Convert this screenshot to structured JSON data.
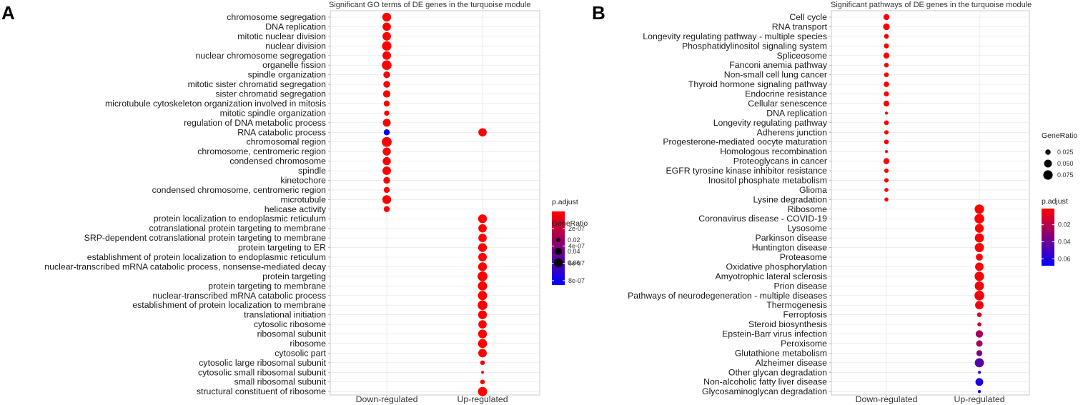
{
  "colors": {
    "low_padj": "#ff0000",
    "high_padj": "#0000ff",
    "grid": "#e3e3e3",
    "panel_border": "#bdbdbd"
  },
  "chart_data": [
    {
      "type": "scatter",
      "panel_label": "A",
      "title": "Significant GO terms of DE genes in the turquoise module",
      "xlabel": "",
      "ylabel": "",
      "categories": [
        "Down-regulated",
        "Up-regulated"
      ],
      "terms": [
        "chromosome segregation",
        "DNA replication",
        "mitotic nuclear division",
        "nuclear division",
        "nuclear chromosome segregation",
        "organelle fission",
        "spindle organization",
        "mitotic sister chromatid segregation",
        "sister chromatid segregation",
        "microtubule cytoskeleton organization involved in mitosis",
        "mitotic spindle organization",
        "regulation of DNA metabolic process",
        "RNA catabolic process",
        "chromosomal region",
        "chromosome, centromeric region",
        "condensed chromosome",
        "spindle",
        "kinetochore",
        "condensed chromosome, centromeric region",
        "microtubule",
        "helicase activity",
        "protein localization to endoplasmic reticulum",
        "cotranslational protein targeting to membrane",
        "SRP-dependent cotranslational protein targeting to membrane",
        "protein targeting to ER",
        "establishment of protein localization to endoplasmic reticulum",
        "nuclear-transcribed mRNA catabolic process, nonsense-mediated decay",
        "protein targeting",
        "protein targeting to membrane",
        "nuclear-transcribed mRNA catabolic process",
        "establishment of protein localization to membrane",
        "translational initiation",
        "cytosolic ribosome",
        "ribosomal subunit",
        "ribosome",
        "cytosolic part",
        "cytosolic large ribosomal subunit",
        "cytosolic small ribosomal subunit",
        "small ribosomal subunit",
        "structural constituent of ribosome"
      ],
      "points": [
        {
          "term": "chromosome segregation",
          "group": "Down-regulated",
          "gene_ratio": 0.055,
          "p_adjust": 1e-09
        },
        {
          "term": "DNA replication",
          "group": "Down-regulated",
          "gene_ratio": 0.05,
          "p_adjust": 1e-09
        },
        {
          "term": "mitotic nuclear division",
          "group": "Down-regulated",
          "gene_ratio": 0.052,
          "p_adjust": 1e-09
        },
        {
          "term": "nuclear division",
          "group": "Down-regulated",
          "gene_ratio": 0.062,
          "p_adjust": 1e-09
        },
        {
          "term": "nuclear chromosome segregation",
          "group": "Down-regulated",
          "gene_ratio": 0.052,
          "p_adjust": 1e-09
        },
        {
          "term": "organelle fission",
          "group": "Down-regulated",
          "gene_ratio": 0.065,
          "p_adjust": 1e-09
        },
        {
          "term": "spindle organization",
          "group": "Down-regulated",
          "gene_ratio": 0.035,
          "p_adjust": 1e-09
        },
        {
          "term": "mitotic sister chromatid segregation",
          "group": "Down-regulated",
          "gene_ratio": 0.035,
          "p_adjust": 1e-09
        },
        {
          "term": "sister chromatid segregation",
          "group": "Down-regulated",
          "gene_ratio": 0.04,
          "p_adjust": 1e-09
        },
        {
          "term": "microtubule cytoskeleton organization involved in mitosis",
          "group": "Down-regulated",
          "gene_ratio": 0.03,
          "p_adjust": 1e-09
        },
        {
          "term": "mitotic spindle organization",
          "group": "Down-regulated",
          "gene_ratio": 0.025,
          "p_adjust": 1e-09
        },
        {
          "term": "regulation of DNA metabolic process",
          "group": "Down-regulated",
          "gene_ratio": 0.045,
          "p_adjust": 1e-09
        },
        {
          "term": "RNA catabolic process",
          "group": "Down-regulated",
          "gene_ratio": 0.03,
          "p_adjust": 8.5e-07
        },
        {
          "term": "RNA catabolic process",
          "group": "Up-regulated",
          "gene_ratio": 0.05,
          "p_adjust": 1e-09
        },
        {
          "term": "chromosomal region",
          "group": "Down-regulated",
          "gene_ratio": 0.068,
          "p_adjust": 1e-09
        },
        {
          "term": "chromosome, centromeric region",
          "group": "Down-regulated",
          "gene_ratio": 0.048,
          "p_adjust": 1e-09
        },
        {
          "term": "condensed chromosome",
          "group": "Down-regulated",
          "gene_ratio": 0.048,
          "p_adjust": 1e-09
        },
        {
          "term": "spindle",
          "group": "Down-regulated",
          "gene_ratio": 0.052,
          "p_adjust": 1e-09
        },
        {
          "term": "kinetochore",
          "group": "Down-regulated",
          "gene_ratio": 0.035,
          "p_adjust": 1e-09
        },
        {
          "term": "condensed chromosome, centromeric region",
          "group": "Down-regulated",
          "gene_ratio": 0.03,
          "p_adjust": 1e-09
        },
        {
          "term": "microtubule",
          "group": "Down-regulated",
          "gene_ratio": 0.055,
          "p_adjust": 1e-09
        },
        {
          "term": "helicase activity",
          "group": "Down-regulated",
          "gene_ratio": 0.03,
          "p_adjust": 1e-09
        },
        {
          "term": "protein localization to endoplasmic reticulum",
          "group": "Up-regulated",
          "gene_ratio": 0.055,
          "p_adjust": 1e-09
        },
        {
          "term": "cotranslational protein targeting to membrane",
          "group": "Up-regulated",
          "gene_ratio": 0.05,
          "p_adjust": 1e-09
        },
        {
          "term": "SRP-dependent cotranslational protein targeting to membrane",
          "group": "Up-regulated",
          "gene_ratio": 0.05,
          "p_adjust": 1e-09
        },
        {
          "term": "protein targeting to ER",
          "group": "Up-regulated",
          "gene_ratio": 0.055,
          "p_adjust": 1e-09
        },
        {
          "term": "establishment of protein localization to endoplasmic reticulum",
          "group": "Up-regulated",
          "gene_ratio": 0.052,
          "p_adjust": 1e-09
        },
        {
          "term": "nuclear-transcribed mRNA catabolic process, nonsense-mediated decay",
          "group": "Up-regulated",
          "gene_ratio": 0.055,
          "p_adjust": 1e-09
        },
        {
          "term": "protein targeting",
          "group": "Up-regulated",
          "gene_ratio": 0.068,
          "p_adjust": 1e-09
        },
        {
          "term": "protein targeting to membrane",
          "group": "Up-regulated",
          "gene_ratio": 0.06,
          "p_adjust": 1e-09
        },
        {
          "term": "nuclear-transcribed mRNA catabolic process",
          "group": "Up-regulated",
          "gene_ratio": 0.06,
          "p_adjust": 1e-09
        },
        {
          "term": "establishment of protein localization to membrane",
          "group": "Up-regulated",
          "gene_ratio": 0.065,
          "p_adjust": 1e-09
        },
        {
          "term": "translational initiation",
          "group": "Up-regulated",
          "gene_ratio": 0.055,
          "p_adjust": 1e-09
        },
        {
          "term": "cytosolic ribosome",
          "group": "Up-regulated",
          "gene_ratio": 0.05,
          "p_adjust": 1e-09
        },
        {
          "term": "ribosomal subunit",
          "group": "Up-regulated",
          "gene_ratio": 0.055,
          "p_adjust": 1e-09
        },
        {
          "term": "ribosome",
          "group": "Up-regulated",
          "gene_ratio": 0.058,
          "p_adjust": 1e-09
        },
        {
          "term": "cytosolic part",
          "group": "Up-regulated",
          "gene_ratio": 0.052,
          "p_adjust": 1e-09
        },
        {
          "term": "cytosolic large ribosomal subunit",
          "group": "Up-regulated",
          "gene_ratio": 0.022,
          "p_adjust": 1e-09
        },
        {
          "term": "cytosolic small ribosomal subunit",
          "group": "Up-regulated",
          "gene_ratio": 0.016,
          "p_adjust": 1e-09
        },
        {
          "term": "small ribosomal subunit",
          "group": "Up-regulated",
          "gene_ratio": 0.022,
          "p_adjust": 1e-09
        },
        {
          "term": "structural constituent of ribosome",
          "group": "Up-regulated",
          "gene_ratio": 0.06,
          "p_adjust": 1e-09
        }
      ],
      "size_legend": {
        "title": "GeneRatio",
        "labels": [
          "0.02",
          "0.04",
          "0.06"
        ],
        "values": [
          0.02,
          0.04,
          0.06
        ]
      },
      "color_legend": {
        "title": "p.adjust",
        "labels": [
          "2e-07",
          "4e-07",
          "6e-07",
          "8e-07"
        ],
        "values": [
          2e-07,
          4e-07,
          6e-07,
          8e-07
        ],
        "range": [
          1e-09,
          8.5e-07
        ]
      },
      "legend_order": [
        "color",
        "size"
      ],
      "size_scale": {
        "min_ratio": 0.015,
        "max_ratio": 0.07
      },
      "grid": true
    },
    {
      "type": "scatter",
      "panel_label": "B",
      "title": "Significant pathways of DE genes in the turquoise module",
      "xlabel": "",
      "ylabel": "",
      "categories": [
        "Down-regulated",
        "Up-regulated"
      ],
      "terms": [
        "Cell cycle",
        "RNA transport",
        "Longevity regulating pathway - multiple species",
        "Phosphatidylinositol signaling system",
        "Spliceosome",
        "Fanconi anemia pathway",
        "Non-small cell lung cancer",
        "Thyroid hormone signaling pathway",
        "Endocrine resistance",
        "Cellular senescence",
        "DNA replication",
        "Longevity regulating pathway",
        "Adherens junction",
        "Progesterone-mediated oocyte maturation",
        "Homologous recombination",
        "Proteoglycans in cancer",
        "EGFR tyrosine kinase inhibitor resistance",
        "Inositol phosphate metabolism",
        "Glioma",
        "Lysine degradation",
        "Ribosome",
        "Coronavirus disease - COVID-19",
        "Lysosome",
        "Parkinson disease",
        "Huntington disease",
        "Proteasome",
        "Oxidative phosphorylation",
        "Amyotrophic lateral sclerosis",
        "Prion disease",
        "Pathways of neurodegeneration - multiple diseases",
        "Thermogenesis",
        "Ferroptosis",
        "Steroid biosynthesis",
        "Epstein-Barr virus infection",
        "Peroxisome",
        "Glutathione metabolism",
        "Alzheimer disease",
        "Other glycan degradation",
        "Non-alcoholic fatty liver disease",
        "Glycosaminoglycan degradation"
      ],
      "points": [
        {
          "term": "Cell cycle",
          "group": "Down-regulated",
          "gene_ratio": 0.03,
          "p_adjust": 0.001
        },
        {
          "term": "RNA transport",
          "group": "Down-regulated",
          "gene_ratio": 0.036,
          "p_adjust": 0.001
        },
        {
          "term": "Longevity regulating pathway - multiple species",
          "group": "Down-regulated",
          "gene_ratio": 0.02,
          "p_adjust": 0.001
        },
        {
          "term": "Phosphatidylinositol signaling system",
          "group": "Down-regulated",
          "gene_ratio": 0.022,
          "p_adjust": 0.001
        },
        {
          "term": "Spliceosome",
          "group": "Down-regulated",
          "gene_ratio": 0.03,
          "p_adjust": 0.001
        },
        {
          "term": "Fanconi anemia pathway",
          "group": "Down-regulated",
          "gene_ratio": 0.02,
          "p_adjust": 0.001
        },
        {
          "term": "Non-small cell lung cancer",
          "group": "Down-regulated",
          "gene_ratio": 0.02,
          "p_adjust": 0.001
        },
        {
          "term": "Thyroid hormone signaling pathway",
          "group": "Down-regulated",
          "gene_ratio": 0.025,
          "p_adjust": 0.001
        },
        {
          "term": "Endocrine resistance",
          "group": "Down-regulated",
          "gene_ratio": 0.022,
          "p_adjust": 0.001
        },
        {
          "term": "Cellular senescence",
          "group": "Down-regulated",
          "gene_ratio": 0.028,
          "p_adjust": 0.001
        },
        {
          "term": "DNA replication",
          "group": "Down-regulated",
          "gene_ratio": 0.012,
          "p_adjust": 0.001
        },
        {
          "term": "Longevity regulating pathway",
          "group": "Down-regulated",
          "gene_ratio": 0.02,
          "p_adjust": 0.001
        },
        {
          "term": "Adherens junction",
          "group": "Down-regulated",
          "gene_ratio": 0.018,
          "p_adjust": 0.001
        },
        {
          "term": "Progesterone-mediated oocyte maturation",
          "group": "Down-regulated",
          "gene_ratio": 0.02,
          "p_adjust": 0.001
        },
        {
          "term": "Homologous recombination",
          "group": "Down-regulated",
          "gene_ratio": 0.012,
          "p_adjust": 0.001
        },
        {
          "term": "Proteoglycans in cancer",
          "group": "Down-regulated",
          "gene_ratio": 0.03,
          "p_adjust": 0.001
        },
        {
          "term": "EGFR tyrosine kinase inhibitor resistance",
          "group": "Down-regulated",
          "gene_ratio": 0.018,
          "p_adjust": 0.001
        },
        {
          "term": "Inositol phosphate metabolism",
          "group": "Down-regulated",
          "gene_ratio": 0.018,
          "p_adjust": 0.001
        },
        {
          "term": "Glioma",
          "group": "Down-regulated",
          "gene_ratio": 0.016,
          "p_adjust": 0.001
        },
        {
          "term": "Lysine degradation",
          "group": "Down-regulated",
          "gene_ratio": 0.016,
          "p_adjust": 0.001
        },
        {
          "term": "Ribosome",
          "group": "Up-regulated",
          "gene_ratio": 0.075,
          "p_adjust": 0.001
        },
        {
          "term": "Coronavirus disease - COVID-19",
          "group": "Up-regulated",
          "gene_ratio": 0.08,
          "p_adjust": 0.001
        },
        {
          "term": "Lysosome",
          "group": "Up-regulated",
          "gene_ratio": 0.065,
          "p_adjust": 0.001
        },
        {
          "term": "Parkinson disease",
          "group": "Up-regulated",
          "gene_ratio": 0.07,
          "p_adjust": 0.001
        },
        {
          "term": "Huntington disease",
          "group": "Up-regulated",
          "gene_ratio": 0.07,
          "p_adjust": 0.002
        },
        {
          "term": "Proteasome",
          "group": "Up-regulated",
          "gene_ratio": 0.04,
          "p_adjust": 0.002
        },
        {
          "term": "Oxidative phosphorylation",
          "group": "Up-regulated",
          "gene_ratio": 0.06,
          "p_adjust": 0.002
        },
        {
          "term": "Amyotrophic lateral sclerosis",
          "group": "Up-regulated",
          "gene_ratio": 0.075,
          "p_adjust": 0.003
        },
        {
          "term": "Prion disease",
          "group": "Up-regulated",
          "gene_ratio": 0.07,
          "p_adjust": 0.003
        },
        {
          "term": "Pathways of neurodegeneration - multiple diseases",
          "group": "Up-regulated",
          "gene_ratio": 0.08,
          "p_adjust": 0.004
        },
        {
          "term": "Thermogenesis",
          "group": "Up-regulated",
          "gene_ratio": 0.06,
          "p_adjust": 0.005
        },
        {
          "term": "Ferroptosis",
          "group": "Up-regulated",
          "gene_ratio": 0.02,
          "p_adjust": 0.01
        },
        {
          "term": "Steroid biosynthesis",
          "group": "Up-regulated",
          "gene_ratio": 0.016,
          "p_adjust": 0.012
        },
        {
          "term": "Epstein-Barr virus infection",
          "group": "Up-regulated",
          "gene_ratio": 0.045,
          "p_adjust": 0.025
        },
        {
          "term": "Peroxisome",
          "group": "Up-regulated",
          "gene_ratio": 0.035,
          "p_adjust": 0.025
        },
        {
          "term": "Glutathione metabolism",
          "group": "Up-regulated",
          "gene_ratio": 0.03,
          "p_adjust": 0.035
        },
        {
          "term": "Alzheimer disease",
          "group": "Up-regulated",
          "gene_ratio": 0.07,
          "p_adjust": 0.045
        },
        {
          "term": "Other glycan degradation",
          "group": "Up-regulated",
          "gene_ratio": 0.012,
          "p_adjust": 0.05
        },
        {
          "term": "Non-alcoholic fatty liver disease",
          "group": "Up-regulated",
          "gene_ratio": 0.05,
          "p_adjust": 0.06
        },
        {
          "term": "Glycosaminoglycan degradation",
          "group": "Up-regulated",
          "gene_ratio": 0.012,
          "p_adjust": 0.065
        }
      ],
      "size_legend": {
        "title": "GeneRatio",
        "labels": [
          "0.025",
          "0.050",
          "0.075"
        ],
        "values": [
          0.025,
          0.05,
          0.075
        ]
      },
      "color_legend": {
        "title": "p.adjust",
        "labels": [
          "0.02",
          "0.04",
          "0.06"
        ],
        "values": [
          0.02,
          0.04,
          0.06
        ],
        "range": [
          0.001,
          0.068
        ]
      },
      "legend_order": [
        "size",
        "color"
      ],
      "size_scale": {
        "min_ratio": 0.01,
        "max_ratio": 0.085
      },
      "grid": true
    }
  ]
}
